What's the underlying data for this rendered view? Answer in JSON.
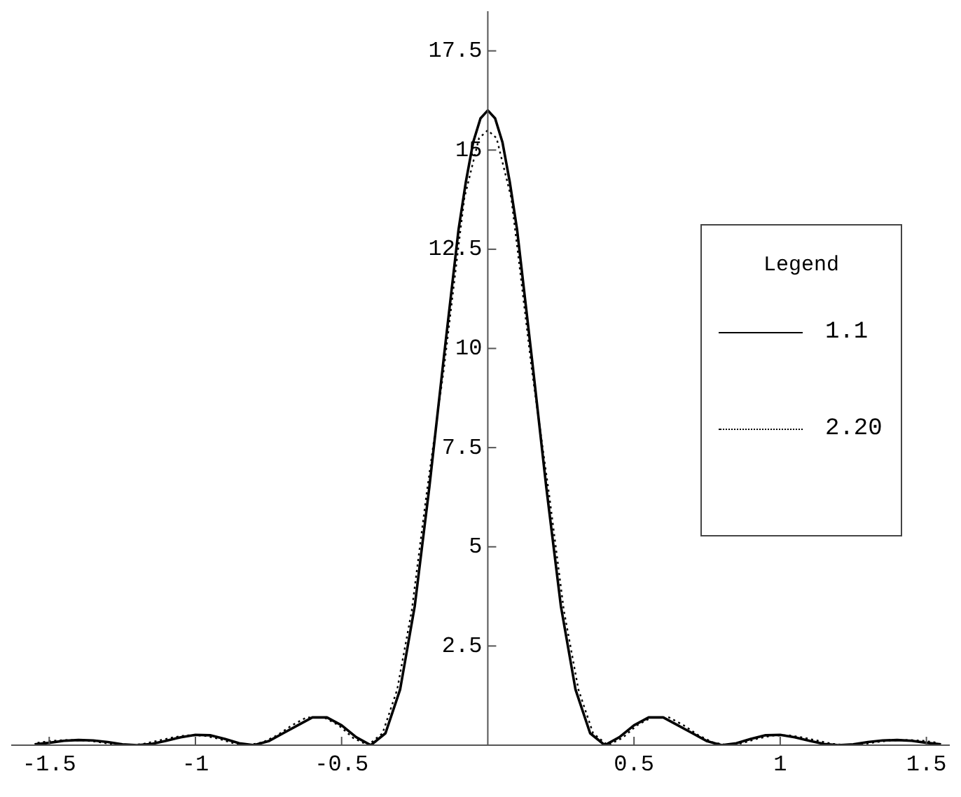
{
  "chart_data": {
    "type": "line",
    "legend_title": "Legend",
    "legend": "right",
    "grid": false,
    "marker": "none",
    "xlim": [
      -1.63,
      1.58
    ],
    "ylim": [
      0,
      18.5
    ],
    "xticks": [
      -1.5,
      -1,
      -0.5,
      0.5,
      1,
      1.5
    ],
    "yticks": [
      2.5,
      5,
      7.5,
      10,
      12.5,
      15,
      17.5
    ],
    "series": [
      {
        "name": "1.1",
        "color": "#000000",
        "line_style": "solid",
        "x": [
          -1.55,
          -1.5,
          -1.45,
          -1.4,
          -1.35,
          -1.3,
          -1.25,
          -1.2,
          -1.15,
          -1.1,
          -1.05,
          -1,
          -0.95,
          -0.9,
          -0.85,
          -0.8,
          -0.75,
          -0.7,
          -0.65,
          -0.6,
          -0.55,
          -0.5,
          -0.45,
          -0.4,
          -0.35,
          -0.3,
          -0.25,
          -0.2,
          -0.15,
          -0.1,
          -0.075,
          -0.05,
          -0.025,
          0,
          0.025,
          0.05,
          0.075,
          0.1,
          0.15,
          0.2,
          0.25,
          0.3,
          0.35,
          0.4,
          0.45,
          0.5,
          0.55,
          0.6,
          0.65,
          0.7,
          0.75,
          0.8,
          0.85,
          0.9,
          0.95,
          1,
          1.05,
          1.1,
          1.15,
          1.2,
          1.25,
          1.3,
          1.35,
          1.4,
          1.45,
          1.5,
          1.55
        ],
        "values": [
          0.02,
          0.06,
          0.11,
          0.13,
          0.12,
          0.08,
          0.02,
          0,
          0.03,
          0.11,
          0.2,
          0.26,
          0.25,
          0.16,
          0.05,
          0,
          0.1,
          0.3,
          0.5,
          0.7,
          0.7,
          0.5,
          0.2,
          0,
          0.3,
          1.4,
          3.5,
          6.5,
          9.8,
          13,
          14.2,
          15.2,
          15.8,
          16,
          15.8,
          15.2,
          14.2,
          13,
          9.8,
          6.5,
          3.5,
          1.4,
          0.3,
          0,
          0.2,
          0.5,
          0.7,
          0.7,
          0.5,
          0.3,
          0.1,
          0,
          0.05,
          0.16,
          0.25,
          0.26,
          0.2,
          0.11,
          0.03,
          0,
          0.02,
          0.08,
          0.12,
          0.13,
          0.11,
          0.06,
          0.02
        ]
      },
      {
        "name": "2.20",
        "color": "#000000",
        "line_style": "dotted",
        "x": [
          -1.54,
          -1.49,
          -1.44,
          -1.38,
          -1.33,
          -1.28,
          -1.23,
          -1.18,
          -1.13,
          -1.08,
          -1.03,
          -0.97,
          -0.92,
          -0.87,
          -0.82,
          -0.77,
          -0.72,
          -0.67,
          -0.62,
          -0.56,
          -0.51,
          -0.46,
          -0.41,
          -0.36,
          -0.31,
          -0.26,
          -0.21,
          -0.15,
          -0.1,
          -0.08,
          -0.05,
          -0.03,
          0,
          0.03,
          0.05,
          0.08,
          0.1,
          0.15,
          0.21,
          0.26,
          0.31,
          0.36,
          0.41,
          0.46,
          0.51,
          0.56,
          0.62,
          0.67,
          0.72,
          0.77,
          0.82,
          0.87,
          0.92,
          0.97,
          1.03,
          1.08,
          1.13,
          1.18,
          1.23,
          1.28,
          1.33,
          1.38,
          1.44,
          1.49,
          1.54
        ],
        "values": [
          0.06,
          0.11,
          0.13,
          0.12,
          0.08,
          0.02,
          0,
          0.03,
          0.11,
          0.19,
          0.25,
          0.24,
          0.16,
          0.05,
          0,
          0.07,
          0.25,
          0.5,
          0.7,
          0.7,
          0.5,
          0.18,
          0,
          0.3,
          1.4,
          3.4,
          6.3,
          9.5,
          12.6,
          13.8,
          14.7,
          15.3,
          15.5,
          15.3,
          14.7,
          13.8,
          12.6,
          9.5,
          6.3,
          3.4,
          1.4,
          0.3,
          0,
          0.18,
          0.5,
          0.7,
          0.7,
          0.5,
          0.25,
          0.07,
          0,
          0.05,
          0.16,
          0.24,
          0.25,
          0.19,
          0.11,
          0.03,
          0,
          0.02,
          0.08,
          0.12,
          0.13,
          0.11,
          0.06
        ]
      }
    ]
  }
}
